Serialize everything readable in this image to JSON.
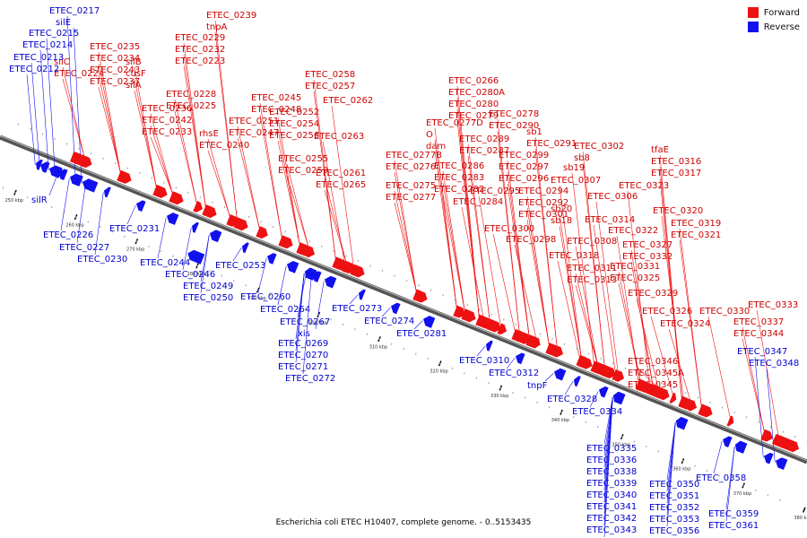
{
  "colors": {
    "forward": "#ee1111",
    "reverse": "#1111ee",
    "backbone": "#555555"
  },
  "legend": {
    "forward_label": "Forward",
    "reverse_label": "Reverse"
  },
  "caption": "Escherichia coli ETEC H10407, complete genome. - 0..5153435",
  "ticks": [
    "250 kbp",
    "260 kbp",
    "270 kbp",
    "280 kbp",
    "290 kbp",
    "300 kbp",
    "310 kbp",
    "320 kbp",
    "330 kbp",
    "340 kbp",
    "350 kbp",
    "360 kbp",
    "370 kbp",
    "380 kbp"
  ],
  "forward_labels": [
    "ETEC_0239",
    "tnpA",
    "ETEC_0235",
    "ETEC_0234",
    "ETEC_0243",
    "ETEC_0237",
    "ETEC_0229",
    "ETEC_0232",
    "ETEC_0223",
    "silB",
    "cusF",
    "silA",
    "silC",
    "ETEC_0224",
    "ETEC_0228",
    "ETEC_0225",
    "ETEC_0236",
    "ETEC_0242",
    "ETEC_0233",
    "rhsE",
    "ETEC_0240",
    "ETEC_0245",
    "ETEC_0248",
    "ETEC_0251",
    "ETEC_0247",
    "ETEC_0252",
    "ETEC_0254",
    "ETEC_0256",
    "ETEC_0255",
    "ETEC_0259",
    "ETEC_0258",
    "ETEC_0257",
    "ETEC_0262",
    "ETEC_0263",
    "ETEC_0261",
    "ETEC_0265",
    "ETEC_0266",
    "ETEC_0280A",
    "ETEC_0280",
    "ETEC_0279",
    "ETEC_0277D",
    "O",
    "dam",
    "ETEC_0277B",
    "ETEC_0276",
    "ETEC_0275",
    "ETEC_0277",
    "ETEC_0278",
    "ETEC_0290",
    "ETEC_0289",
    "ETEC_0287",
    "ETEC_0286",
    "ETEC_0283",
    "ETEC_0282",
    "ETEC_0284",
    "sb1",
    "ETEC_0291",
    "ETEC_0299",
    "ETEC_0297",
    "ETEC_0296",
    "ETEC_0295",
    "ETEC_0294",
    "ETEC_0292",
    "ETEC_0301",
    "ETEC_0300",
    "ETEC_0298",
    "ETEC_0302",
    "sb8",
    "sb19",
    "ETEC_0307",
    "ETEC_0306",
    "sb20",
    "sb18",
    "ETEC_0314",
    "ETEC_0308",
    "ETEC_0318",
    "ETEC_0311",
    "ETEC_0313",
    "tfaE",
    "ETEC_0316",
    "ETEC_0317",
    "ETEC_0323",
    "ETEC_0322",
    "ETEC_0320",
    "ETEC_0319",
    "ETEC_0321",
    "ETEC_0327",
    "ETEC_0332",
    "ETEC_0331",
    "ETEC_0325",
    "ETEC_0329",
    "ETEC_0326",
    "ETEC_0324",
    "ETEC_0330",
    "ETEC_0333",
    "ETEC_0337",
    "ETEC_0344",
    "ETEC_0346",
    "ETEC_0345A",
    "ETEC_0345"
  ],
  "reverse_labels": [
    "ETEC_0217",
    "silE",
    "ETEC_0215",
    "ETEC_0214",
    "ETEC_0213",
    "ETEC_0212",
    "silR",
    "ETEC_0226",
    "ETEC_0227",
    "ETEC_0230",
    "ETEC_0231",
    "ETEC_0244",
    "ETEC_0246",
    "ETEC_0249",
    "ETEC_0250",
    "ETEC_0253",
    "ETEC_0260",
    "ETEC_0264",
    "ETEC_0267",
    "xis",
    "ETEC_0269",
    "ETEC_0270",
    "ETEC_0271",
    "ETEC_0272",
    "ETEC_0273",
    "ETEC_0274",
    "ETEC_0281",
    "ETEC_0310",
    "ETEC_0312",
    "tnpF",
    "ETEC_0328",
    "ETEC_0334",
    "ETEC_0347",
    "ETEC_0348",
    "ETEC_0335",
    "ETEC_0336",
    "ETEC_0338",
    "ETEC_0339",
    "ETEC_0340",
    "ETEC_0341",
    "ETEC_0342",
    "ETEC_0343",
    "ETEC_0349",
    "ETEC_0350",
    "ETEC_0351",
    "ETEC_0352",
    "ETEC_0353",
    "ETEC_0356",
    "ETEC_0358",
    "ETEC_0359",
    "ETEC_0361"
  ]
}
